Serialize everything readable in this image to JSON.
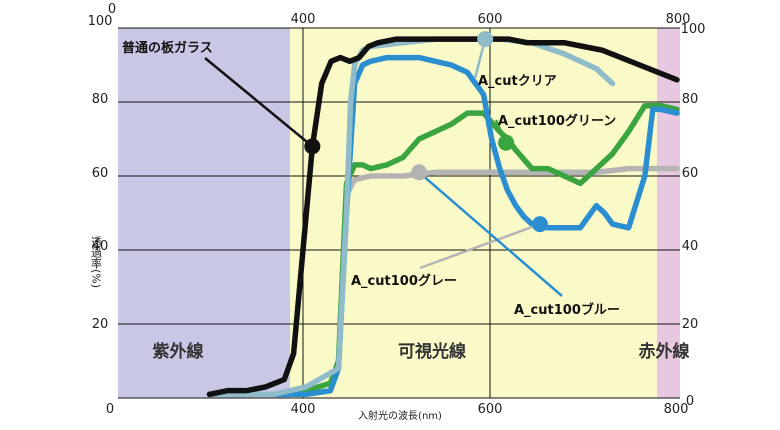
{
  "chart_data": {
    "type": "line",
    "xlabel": "入射光の波長(nm)",
    "ylabel": "透過率(%)",
    "xlim": [
      300,
      800
    ],
    "ylim": [
      0,
      100
    ],
    "x_ticks": [
      "400",
      "600",
      "800"
    ],
    "x_tick_top_left": "0",
    "y_ticks_left": [
      "0",
      "20",
      "40",
      "60",
      "80",
      "100"
    ],
    "y_ticks_right": [
      "20",
      "40",
      "60",
      "80",
      "100"
    ],
    "y_tick_right_bottom": "0",
    "grid": true,
    "regions": [
      {
        "label": "紫外線",
        "from": 300,
        "to": 390,
        "color": "#c8c8e6"
      },
      {
        "label": "可視光線",
        "from": 390,
        "to": 780,
        "color": "#fafac8"
      },
      {
        "label": "赤外線",
        "from": 780,
        "to": 800,
        "color": "#e8c8e0"
      }
    ],
    "series": [
      {
        "name": "普通の板ガラス",
        "color": "#111111",
        "points": [
          [
            300,
            1
          ],
          [
            320,
            2
          ],
          [
            340,
            2
          ],
          [
            360,
            3
          ],
          [
            380,
            5
          ],
          [
            390,
            12
          ],
          [
            400,
            40
          ],
          [
            410,
            68
          ],
          [
            420,
            85
          ],
          [
            430,
            91
          ],
          [
            440,
            92
          ],
          [
            450,
            91
          ],
          [
            460,
            92
          ],
          [
            470,
            95
          ],
          [
            480,
            96
          ],
          [
            500,
            97
          ],
          [
            520,
            97
          ],
          [
            540,
            97
          ],
          [
            560,
            97
          ],
          [
            580,
            97
          ],
          [
            600,
            97
          ],
          [
            620,
            97
          ],
          [
            640,
            96
          ],
          [
            660,
            96
          ],
          [
            680,
            96
          ],
          [
            700,
            95
          ],
          [
            720,
            94
          ],
          [
            740,
            92
          ],
          [
            760,
            90
          ],
          [
            780,
            88
          ],
          [
            800,
            86
          ]
        ],
        "marker": [
          410,
          68
        ]
      },
      {
        "name": "A_cutクリア",
        "color": "#8fbcc8",
        "points": [
          [
            300,
            1
          ],
          [
            340,
            1
          ],
          [
            380,
            1
          ],
          [
            400,
            2
          ],
          [
            420,
            3
          ],
          [
            460,
            8
          ],
          [
            470,
            50
          ],
          [
            475,
            80
          ],
          [
            480,
            90
          ],
          [
            490,
            94
          ],
          [
            500,
            95
          ],
          [
            540,
            96
          ],
          [
            580,
            97
          ],
          [
            620,
            97
          ],
          [
            660,
            97
          ],
          [
            700,
            96
          ],
          [
            740,
            93
          ],
          [
            760,
            91
          ],
          [
            780,
            89
          ],
          [
            800,
            85
          ]
        ],
        "marker": [
          642,
          97
        ]
      },
      {
        "name": "A_cut100グリーン",
        "color": "#3aa440",
        "points": [
          [
            300,
            1
          ],
          [
            380,
            1
          ],
          [
            420,
            2
          ],
          [
            450,
            4
          ],
          [
            460,
            10
          ],
          [
            470,
            58
          ],
          [
            480,
            63
          ],
          [
            490,
            63
          ],
          [
            500,
            62
          ],
          [
            520,
            63
          ],
          [
            540,
            65
          ],
          [
            560,
            70
          ],
          [
            580,
            72
          ],
          [
            600,
            74
          ],
          [
            620,
            77
          ],
          [
            640,
            77
          ],
          [
            660,
            72
          ],
          [
            670,
            70
          ],
          [
            680,
            67
          ],
          [
            700,
            62
          ],
          [
            720,
            62
          ],
          [
            740,
            60
          ],
          [
            760,
            58
          ],
          [
            780,
            62
          ],
          [
            800,
            66
          ],
          [
            820,
            72
          ],
          [
            840,
            79
          ],
          [
            860,
            79
          ],
          [
            880,
            78
          ]
        ],
        "marker": [
          668,
          69
        ]
      },
      {
        "name": "A_cut100ブルー",
        "color": "#2a8ed0",
        "points": [
          [
            300,
            1
          ],
          [
            380,
            1
          ],
          [
            420,
            1
          ],
          [
            450,
            2
          ],
          [
            460,
            8
          ],
          [
            470,
            50
          ],
          [
            480,
            85
          ],
          [
            490,
            90
          ],
          [
            500,
            91
          ],
          [
            520,
            92
          ],
          [
            540,
            92
          ],
          [
            560,
            92
          ],
          [
            580,
            91
          ],
          [
            600,
            90
          ],
          [
            620,
            88
          ],
          [
            640,
            82
          ],
          [
            650,
            70
          ],
          [
            660,
            62
          ],
          [
            670,
            56
          ],
          [
            680,
            52
          ],
          [
            690,
            49
          ],
          [
            700,
            47
          ],
          [
            720,
            46
          ],
          [
            740,
            46
          ],
          [
            760,
            46
          ],
          [
            770,
            49
          ],
          [
            780,
            52
          ],
          [
            790,
            50
          ],
          [
            800,
            47
          ],
          [
            820,
            46
          ],
          [
            840,
            60
          ],
          [
            850,
            78
          ],
          [
            860,
            78
          ],
          [
            880,
            77
          ]
        ],
        "marker": [
          710,
          47
        ]
      },
      {
        "name": "A_cut100グレー",
        "color": "#b4b4b4",
        "points": [
          [
            300,
            1
          ],
          [
            380,
            1
          ],
          [
            420,
            1
          ],
          [
            450,
            2
          ],
          [
            460,
            10
          ],
          [
            470,
            55
          ],
          [
            480,
            59
          ],
          [
            500,
            60
          ],
          [
            540,
            60
          ],
          [
            580,
            61
          ],
          [
            620,
            61
          ],
          [
            660,
            61
          ],
          [
            700,
            61
          ],
          [
            740,
            61
          ],
          [
            780,
            61
          ],
          [
            820,
            62
          ],
          [
            860,
            62
          ],
          [
            880,
            62
          ]
        ],
        "marker": [
          560,
          61
        ]
      }
    ]
  },
  "annotations": {
    "normal_glass": "普通の板ガラス",
    "clear": "A_cutクリア",
    "green": "A_cut100グリーン",
    "gray": "A_cut100グレー",
    "blue": "A_cut100ブルー"
  }
}
